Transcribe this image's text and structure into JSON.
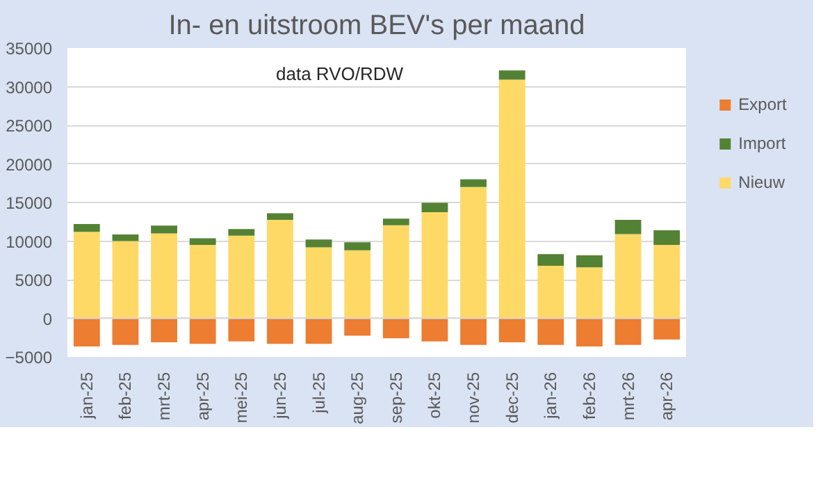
{
  "chart_data": {
    "type": "bar",
    "title": "In- en uitstroom BEV's per maand",
    "categories": [
      "jan-25",
      "feb-25",
      "mrt-25",
      "apr-25",
      "mei-25",
      "jun-25",
      "jul-25",
      "aug-25",
      "sep-25",
      "okt-25",
      "nov-25",
      "dec-25",
      "jan-26",
      "feb-26",
      "mrt-26",
      "apr-26"
    ],
    "stacked": true,
    "series": [
      {
        "name": "Nieuw",
        "color": "#ffd966",
        "values": [
          11200,
          10000,
          11000,
          9500,
          10700,
          12750,
          9200,
          8800,
          12050,
          13750,
          17000,
          30900,
          6800,
          6600,
          10900,
          9500
        ]
      },
      {
        "name": "Import",
        "color": "#548235",
        "values": [
          1000,
          850,
          1000,
          850,
          850,
          850,
          1000,
          1050,
          850,
          1200,
          1000,
          1200,
          1500,
          1550,
          1850,
          1900
        ]
      },
      {
        "name": "Export",
        "color": "#ed7d31",
        "values": [
          -3650,
          -3450,
          -3100,
          -3300,
          -3000,
          -3300,
          -3300,
          -2250,
          -2600,
          -3000,
          -3450,
          -3100,
          -3450,
          -3650,
          -3450,
          -2750
        ]
      }
    ],
    "ylim": [
      -5000,
      35000
    ],
    "yticks": [
      -5000,
      0,
      5000,
      10000,
      15000,
      20000,
      25000,
      30000,
      35000
    ],
    "grid": "y",
    "legend": "right",
    "annotations": [
      "data RVO/RDW"
    ]
  }
}
